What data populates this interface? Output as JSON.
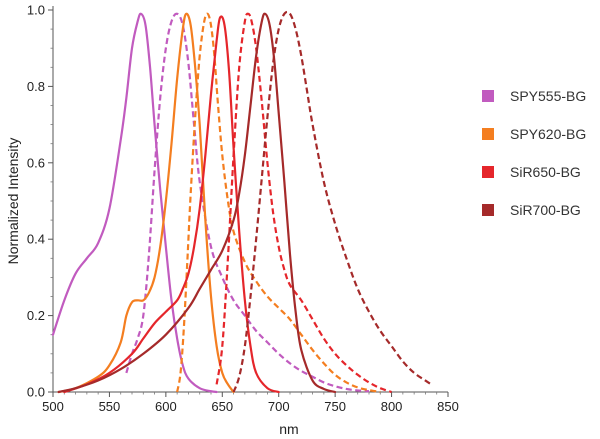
{
  "chart_data": {
    "type": "line",
    "title": "",
    "xlabel": "nm",
    "ylabel": "Normalized Intensity",
    "xlim": [
      500,
      850
    ],
    "ylim": [
      0,
      1.0
    ],
    "x_ticks": [
      "500",
      "550",
      "600",
      "650",
      "700",
      "750",
      "800",
      "850"
    ],
    "y_ticks": [
      "0.0",
      "0.2",
      "0.4",
      "0.6",
      "0.8",
      "1.0"
    ],
    "legend_position": "right",
    "series": [
      {
        "name": "SPY555-BG",
        "color": "#c15bbf",
        "curves": [
          {
            "style": "solid",
            "x": [
              500,
              510,
              520,
              530,
              540,
              550,
              560,
              565,
              570,
              575,
              578,
              582,
              586,
              590,
              595,
              600,
              605,
              610,
              615,
              620,
              630,
              640,
              645
            ],
            "y": [
              0.15,
              0.24,
              0.31,
              0.35,
              0.39,
              0.48,
              0.66,
              0.77,
              0.9,
              0.97,
              0.99,
              0.96,
              0.85,
              0.7,
              0.53,
              0.38,
              0.24,
              0.14,
              0.07,
              0.035,
              0.01,
              0.002,
              0.0
            ]
          },
          {
            "style": "dashed",
            "x": [
              565,
              570,
              575,
              580,
              585,
              590,
              595,
              600,
              605,
              610,
              615,
              620,
              625,
              630,
              640,
              650,
              660,
              670,
              680,
              690,
              700,
              710,
              720,
              730,
              740,
              750,
              760,
              770,
              780
            ],
            "y": [
              0.05,
              0.1,
              0.14,
              0.2,
              0.36,
              0.58,
              0.77,
              0.9,
              0.97,
              0.99,
              0.96,
              0.86,
              0.7,
              0.55,
              0.38,
              0.3,
              0.24,
              0.2,
              0.16,
              0.13,
              0.1,
              0.075,
              0.055,
              0.04,
              0.025,
              0.015,
              0.008,
              0.004,
              0.002
            ]
          }
        ]
      },
      {
        "name": "SPY620-BG",
        "color": "#f47e20",
        "curves": [
          {
            "style": "solid",
            "x": [
              505,
              520,
              540,
              550,
              560,
              565,
              570,
              575,
              580,
              585,
              590,
              595,
              600,
              605,
              610,
              615,
              618,
              622,
              626,
              630,
              635,
              640,
              645,
              650,
              655,
              660
            ],
            "y": [
              0.0,
              0.01,
              0.04,
              0.07,
              0.13,
              0.2,
              0.235,
              0.24,
              0.24,
              0.26,
              0.3,
              0.38,
              0.5,
              0.65,
              0.82,
              0.95,
              0.99,
              0.96,
              0.85,
              0.7,
              0.45,
              0.25,
              0.12,
              0.05,
              0.02,
              0.0
            ]
          },
          {
            "style": "dashed",
            "x": [
              610,
              613,
              616,
              619,
              622,
              626,
              630,
              634,
              637,
              640,
              643,
              646,
              650,
              655,
              660,
              670,
              680,
              690,
              700,
              710,
              720,
              730,
              740,
              750,
              760,
              770,
              780,
              790
            ],
            "y": [
              0.0,
              0.05,
              0.17,
              0.34,
              0.52,
              0.72,
              0.88,
              0.97,
              0.99,
              0.96,
              0.88,
              0.76,
              0.62,
              0.5,
              0.42,
              0.34,
              0.29,
              0.25,
              0.22,
              0.19,
              0.15,
              0.11,
              0.075,
              0.045,
              0.025,
              0.012,
              0.005,
              0.0
            ]
          }
        ]
      },
      {
        "name": "SiR650-BG",
        "color": "#e5262b",
        "curves": [
          {
            "style": "solid",
            "x": [
              510,
              530,
              550,
              570,
              580,
              590,
              600,
              610,
              615,
              620,
              625,
              630,
              635,
              640,
              645,
              648,
              652,
              656,
              660,
              665,
              670,
              675,
              680,
              690,
              700
            ],
            "y": [
              0.0,
              0.02,
              0.05,
              0.1,
              0.14,
              0.18,
              0.21,
              0.24,
              0.27,
              0.31,
              0.38,
              0.48,
              0.62,
              0.78,
              0.92,
              0.98,
              0.96,
              0.84,
              0.64,
              0.42,
              0.24,
              0.12,
              0.05,
              0.01,
              0.0
            ]
          },
          {
            "style": "dashed",
            "x": [
              645,
              650,
              655,
              660,
              665,
              670,
              673,
              676,
              680,
              685,
              690,
              695,
              700,
              705,
              710,
              720,
              730,
              740,
              750,
              760,
              770,
              780,
              790,
              800
            ],
            "y": [
              0.02,
              0.12,
              0.35,
              0.62,
              0.85,
              0.97,
              0.99,
              0.97,
              0.9,
              0.76,
              0.6,
              0.47,
              0.38,
              0.32,
              0.28,
              0.24,
              0.19,
              0.14,
              0.1,
              0.07,
              0.045,
              0.025,
              0.01,
              0.0
            ]
          }
        ]
      },
      {
        "name": "SiR700-BG",
        "color": "#a52a2a",
        "curves": [
          {
            "style": "solid",
            "x": [
              505,
              520,
              540,
              560,
              580,
              600,
              620,
              630,
              640,
              650,
              660,
              665,
              670,
              675,
              680,
              685,
              688,
              692,
              696,
              700,
              705,
              710,
              715,
              720,
              730,
              740,
              750
            ],
            "y": [
              0.0,
              0.01,
              0.03,
              0.06,
              0.1,
              0.15,
              0.22,
              0.27,
              0.32,
              0.37,
              0.45,
              0.52,
              0.62,
              0.75,
              0.88,
              0.97,
              0.99,
              0.96,
              0.87,
              0.73,
              0.55,
              0.36,
              0.21,
              0.11,
              0.03,
              0.008,
              0.0
            ]
          },
          {
            "style": "dashed",
            "x": [
              660,
              665,
              670,
              675,
              680,
              685,
              690,
              695,
              700,
              705,
              710,
              715,
              720,
              725,
              730,
              740,
              750,
              760,
              770,
              780,
              790,
              800,
              810,
              820,
              830,
              835
            ],
            "y": [
              0.0,
              0.04,
              0.12,
              0.25,
              0.4,
              0.56,
              0.72,
              0.86,
              0.95,
              0.99,
              0.99,
              0.95,
              0.88,
              0.79,
              0.7,
              0.55,
              0.44,
              0.35,
              0.27,
              0.21,
              0.16,
              0.12,
              0.08,
              0.05,
              0.03,
              0.02
            ]
          }
        ]
      }
    ]
  }
}
